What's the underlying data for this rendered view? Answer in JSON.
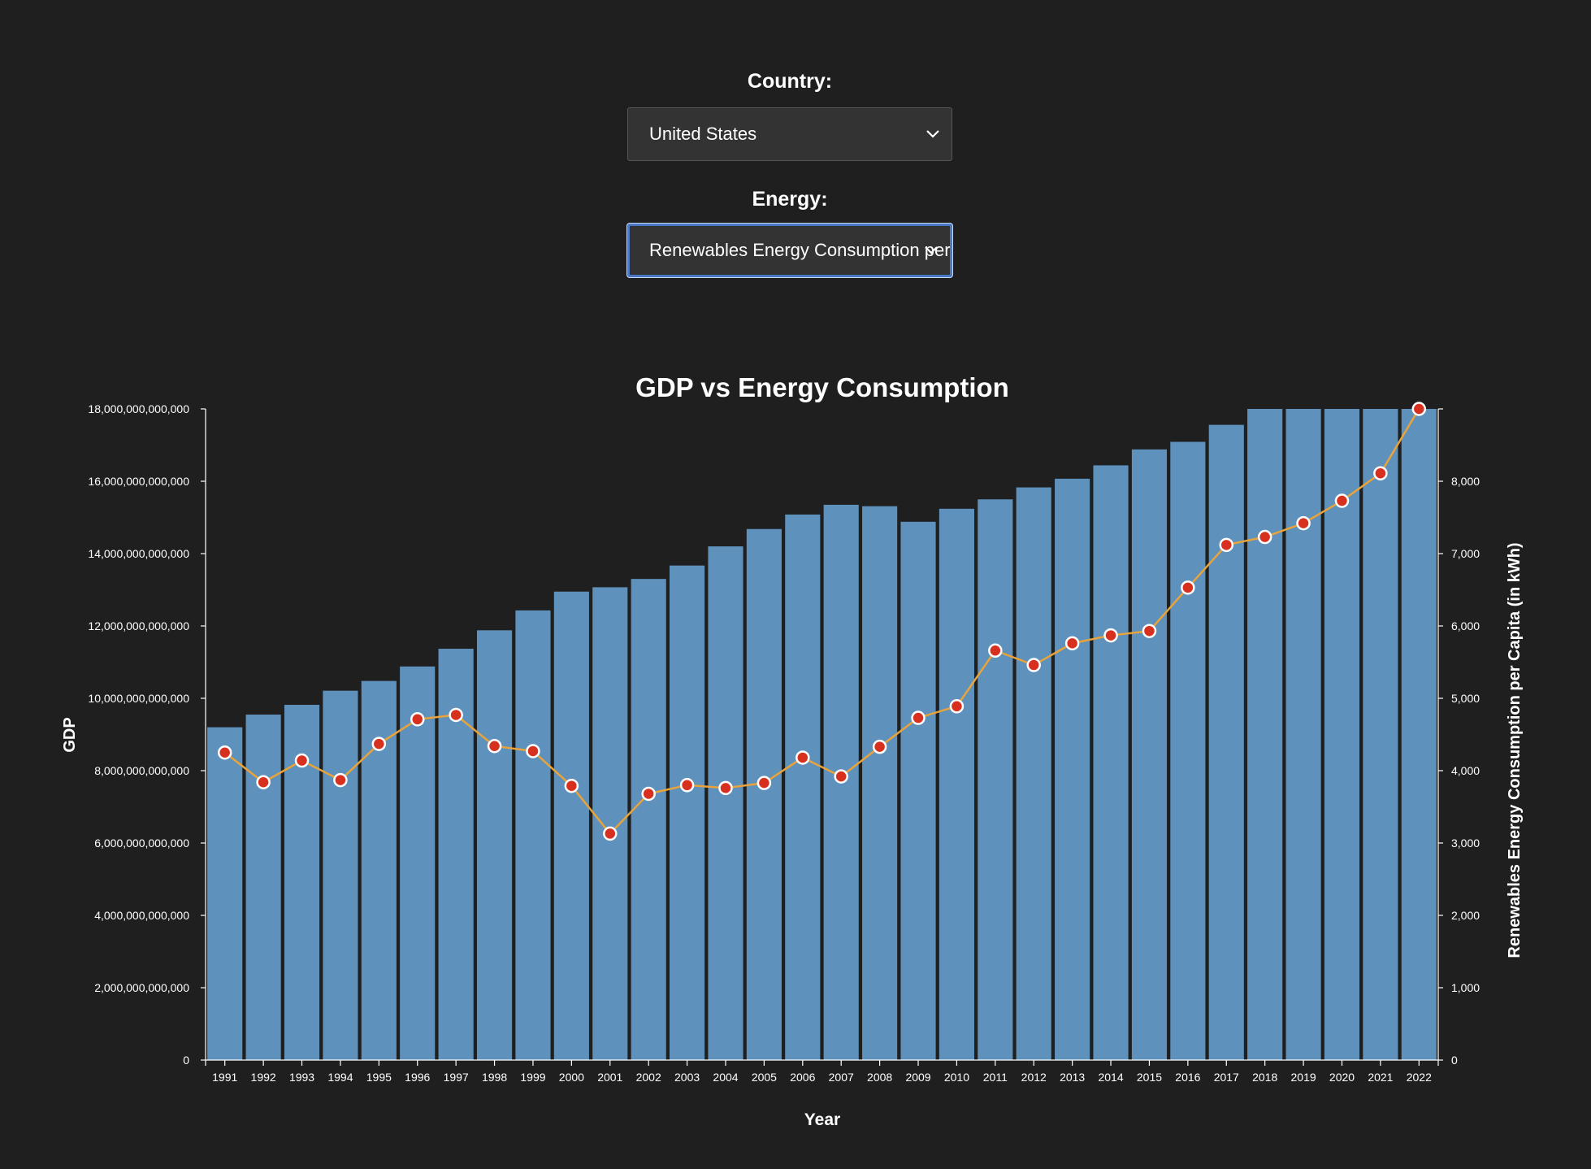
{
  "controls": {
    "country_label": "Country:",
    "country_value": "United States",
    "energy_label": "Energy:",
    "energy_value": "Renewables Energy Consumption per Capita (in kWh)",
    "icons": [
      "chevron-down-icon"
    ]
  },
  "chart_data": {
    "type": "bar+line",
    "title": "GDP vs Energy Consumption",
    "xlabel": "Year",
    "ylabel_left": "GDP",
    "ylabel_right": "Renewables Energy Consumption per Capita (in kWh)",
    "categories": [
      "1991",
      "1992",
      "1993",
      "1994",
      "1995",
      "1996",
      "1997",
      "1998",
      "1999",
      "2000",
      "2001",
      "2002",
      "2003",
      "2004",
      "2005",
      "2006",
      "2007",
      "2008",
      "2009",
      "2010",
      "2011",
      "2012",
      "2013",
      "2014",
      "2015",
      "2016",
      "2017",
      "2018",
      "2019",
      "2020",
      "2021",
      "2022"
    ],
    "ylim_left": [
      0,
      18000000000000
    ],
    "ylim_right": [
      0,
      9000
    ],
    "left_ticks": [
      "0",
      "2,000,000,000,000",
      "4,000,000,000,000",
      "6,000,000,000,000",
      "8,000,000,000,000",
      "10,000,000,000,000",
      "12,000,000,000,000",
      "14,000,000,000,000",
      "16,000,000,000,000",
      "18,000,000,000,000"
    ],
    "left_tick_values": [
      0,
      2000000000000,
      4000000000000,
      6000000000000,
      8000000000000,
      10000000000000,
      12000000000000,
      14000000000000,
      16000000000000,
      18000000000000
    ],
    "right_ticks": [
      "0",
      "1,000",
      "2,000",
      "3,000",
      "4,000",
      "5,000",
      "6,000",
      "7,000",
      "8,000"
    ],
    "right_tick_values": [
      0,
      1000,
      2000,
      3000,
      4000,
      5000,
      6000,
      7000,
      8000
    ],
    "series": [
      {
        "name": "GDP",
        "type": "bar",
        "color": "#5f91bd",
        "values": [
          9200000000000,
          9550000000000,
          9820000000000,
          10210000000000,
          10480000000000,
          10880000000000,
          11370000000000,
          11880000000000,
          12430000000000,
          12950000000000,
          13070000000000,
          13300000000000,
          13670000000000,
          14200000000000,
          14680000000000,
          15080000000000,
          15350000000000,
          15310000000000,
          14880000000000,
          15240000000000,
          15500000000000,
          15830000000000,
          16070000000000,
          16440000000000,
          16880000000000,
          17090000000000,
          17560000000000,
          18000000000000,
          18000000000000,
          18000000000000,
          18000000000000,
          18000000000000
        ]
      },
      {
        "name": "Renewables Energy Consumption per Capita (in kWh)",
        "type": "line",
        "line_color": "#e8a33a",
        "point_color": "#d7301f",
        "values": [
          4250,
          3840,
          4140,
          3870,
          4370,
          4710,
          4770,
          4340,
          4270,
          3790,
          3130,
          3680,
          3800,
          3760,
          3830,
          4180,
          3920,
          4330,
          4730,
          4890,
          5660,
          5460,
          5760,
          5870,
          5930,
          6530,
          7120,
          7230,
          7420,
          7730,
          8110,
          9000
        ]
      }
    ],
    "grid": false,
    "legend": "none"
  }
}
